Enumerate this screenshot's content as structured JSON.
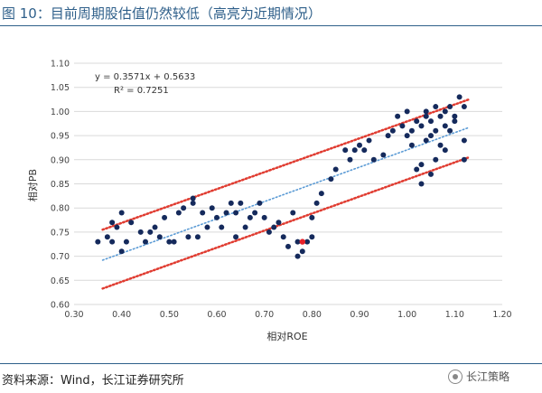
{
  "header": {
    "title": "图 10：目前周期股估值仍然较低（高亮为近期情况）"
  },
  "footer": {
    "source": "资料来源：Wind，长江证券研究所",
    "logo_text": "长江策略"
  },
  "chart_data": {
    "type": "scatter",
    "xlabel": "相对ROE",
    "ylabel": "相对PB",
    "xlim": [
      0.3,
      1.2
    ],
    "ylim": [
      0.6,
      1.1
    ],
    "x_ticks": [
      "0.30",
      "0.40",
      "0.50",
      "0.60",
      "0.70",
      "0.80",
      "0.90",
      "1.00",
      "1.10",
      "1.20"
    ],
    "y_ticks": [
      "0.60",
      "0.65",
      "0.70",
      "0.75",
      "0.80",
      "0.85",
      "0.90",
      "0.95",
      "1.00",
      "1.05",
      "1.10"
    ],
    "trend_equation": "y = 0.3571x + 0.5633",
    "r_squared": "R² = 0.7251",
    "trend": {
      "slope": 0.3571,
      "intercept": 0.5633,
      "x_range": [
        0.36,
        1.13
      ]
    },
    "upper_band": {
      "x_range": [
        0.36,
        1.13
      ],
      "y_range": [
        0.755,
        1.025
      ]
    },
    "lower_band": {
      "x_range": [
        0.36,
        1.13
      ],
      "y_range": [
        0.633,
        0.905
      ]
    },
    "grid": true,
    "colors": {
      "points": "#152a5c",
      "highlight": "#e8222a",
      "trend": "#5b9bd5",
      "bands": "#e03c31",
      "grid": "#d9d9d9"
    },
    "points": [
      [
        0.35,
        0.73
      ],
      [
        0.37,
        0.74
      ],
      [
        0.38,
        0.73
      ],
      [
        0.38,
        0.77
      ],
      [
        0.39,
        0.76
      ],
      [
        0.4,
        0.79
      ],
      [
        0.4,
        0.71
      ],
      [
        0.41,
        0.73
      ],
      [
        0.42,
        0.77
      ],
      [
        0.44,
        0.75
      ],
      [
        0.45,
        0.73
      ],
      [
        0.46,
        0.75
      ],
      [
        0.47,
        0.76
      ],
      [
        0.48,
        0.74
      ],
      [
        0.49,
        0.78
      ],
      [
        0.5,
        0.73
      ],
      [
        0.51,
        0.73
      ],
      [
        0.52,
        0.79
      ],
      [
        0.53,
        0.8
      ],
      [
        0.54,
        0.74
      ],
      [
        0.55,
        0.81
      ],
      [
        0.55,
        0.82
      ],
      [
        0.56,
        0.74
      ],
      [
        0.57,
        0.79
      ],
      [
        0.58,
        0.76
      ],
      [
        0.59,
        0.8
      ],
      [
        0.6,
        0.78
      ],
      [
        0.61,
        0.76
      ],
      [
        0.62,
        0.79
      ],
      [
        0.63,
        0.81
      ],
      [
        0.64,
        0.74
      ],
      [
        0.64,
        0.79
      ],
      [
        0.65,
        0.81
      ],
      [
        0.66,
        0.76
      ],
      [
        0.67,
        0.78
      ],
      [
        0.68,
        0.79
      ],
      [
        0.69,
        0.81
      ],
      [
        0.7,
        0.78
      ],
      [
        0.71,
        0.75
      ],
      [
        0.72,
        0.76
      ],
      [
        0.73,
        0.77
      ],
      [
        0.74,
        0.74
      ],
      [
        0.75,
        0.72
      ],
      [
        0.76,
        0.79
      ],
      [
        0.77,
        0.7
      ],
      [
        0.77,
        0.73
      ],
      [
        0.78,
        0.71
      ],
      [
        0.79,
        0.73
      ],
      [
        0.8,
        0.74
      ],
      [
        0.8,
        0.78
      ],
      [
        0.81,
        0.81
      ],
      [
        0.82,
        0.83
      ],
      [
        0.84,
        0.86
      ],
      [
        0.85,
        0.88
      ],
      [
        0.87,
        0.92
      ],
      [
        0.88,
        0.9
      ],
      [
        0.89,
        0.92
      ],
      [
        0.9,
        0.93
      ],
      [
        0.91,
        0.92
      ],
      [
        0.92,
        0.94
      ],
      [
        0.93,
        0.9
      ],
      [
        0.95,
        0.91
      ],
      [
        0.96,
        0.95
      ],
      [
        0.97,
        0.96
      ],
      [
        0.98,
        0.99
      ],
      [
        0.99,
        0.97
      ],
      [
        1.0,
        0.95
      ],
      [
        1.0,
        1.0
      ],
      [
        1.01,
        0.96
      ],
      [
        1.01,
        0.93
      ],
      [
        1.02,
        0.98
      ],
      [
        1.02,
        0.88
      ],
      [
        1.03,
        0.85
      ],
      [
        1.03,
        0.89
      ],
      [
        1.03,
        0.97
      ],
      [
        1.04,
        0.94
      ],
      [
        1.04,
        0.99
      ],
      [
        1.04,
        1.0
      ],
      [
        1.05,
        0.87
      ],
      [
        1.05,
        0.95
      ],
      [
        1.05,
        0.98
      ],
      [
        1.06,
        0.9
      ],
      [
        1.06,
        1.01
      ],
      [
        1.06,
        0.96
      ],
      [
        1.07,
        0.99
      ],
      [
        1.07,
        0.93
      ],
      [
        1.08,
        1.0
      ],
      [
        1.08,
        0.97
      ],
      [
        1.08,
        0.92
      ],
      [
        1.09,
        1.01
      ],
      [
        1.09,
        0.96
      ],
      [
        1.1,
        0.99
      ],
      [
        1.1,
        0.98
      ],
      [
        1.11,
        1.03
      ],
      [
        1.12,
        0.94
      ],
      [
        1.12,
        0.9
      ],
      [
        1.12,
        1.01
      ]
    ],
    "highlight_points": [
      [
        0.78,
        0.73
      ]
    ]
  }
}
